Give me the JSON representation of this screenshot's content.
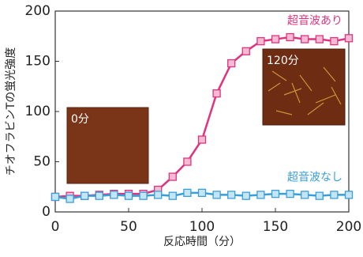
{
  "chart_data": {
    "type": "line",
    "x_label": "反応時間（分）",
    "y_label": "チオフラビンTの蛍光強度",
    "x": [
      0,
      10,
      20,
      30,
      40,
      50,
      60,
      70,
      80,
      90,
      100,
      110,
      120,
      130,
      140,
      150,
      160,
      170,
      180,
      190,
      200
    ],
    "series": [
      {
        "name": "超音波あり",
        "color": "#e0337f",
        "marker_fill": "#f6bad3",
        "values": [
          15,
          16,
          16,
          17,
          18,
          18,
          18,
          22,
          35,
          50,
          72,
          118,
          148,
          160,
          170,
          172,
          174,
          172,
          172,
          170,
          173
        ]
      },
      {
        "name": "超音波なし",
        "color": "#3a9fd8",
        "marker_fill": "#c4e5f6",
        "values": [
          15,
          13,
          16,
          16,
          17,
          16,
          16,
          17,
          16,
          19,
          19,
          17,
          17,
          16,
          17,
          18,
          18,
          17,
          16,
          17,
          17
        ]
      }
    ],
    "xlim": [
      0,
      200
    ],
    "ylim": [
      0,
      200
    ],
    "xticks": [
      0,
      50,
      100,
      150,
      200
    ],
    "yticks": [
      0,
      50,
      100,
      150,
      200
    ],
    "annotations": [
      "0分",
      "120分"
    ]
  }
}
